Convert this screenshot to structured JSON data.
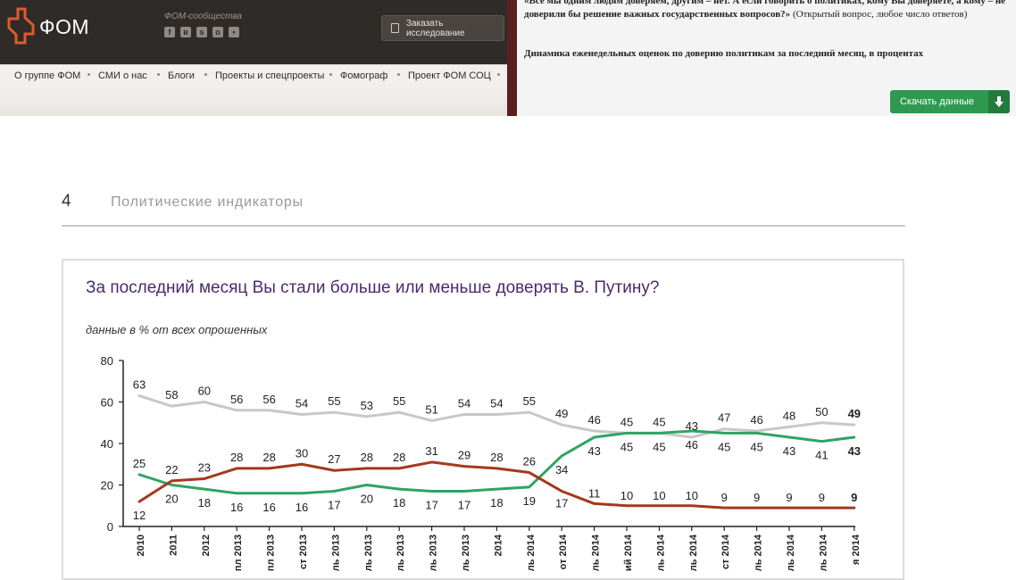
{
  "fom_site": {
    "logo_text": "ФОМ",
    "community_label": "ФОМ-сообщества",
    "social_icons": [
      "facebook-icon",
      "vk-icon",
      "skype-icon",
      "odnoklassniki-icon",
      "gift-icon"
    ],
    "order_button": "Заказать исследование",
    "nav": [
      "О группе ФОМ",
      "СМИ о нас",
      "Блоги",
      "Проекты и спецпроекты",
      "Фомограф",
      "Проект ФОМ СОЦ"
    ]
  },
  "right_panel": {
    "question_bold": "«Все мы одним людям доверяем, другим – нет. А если говорить о политиках, кому Вы доверяете, а кому – не доверили бы решение важных государственных вопросов?»",
    "question_note": "(Открытый вопрос, любое число ответов)",
    "dynamics_title": "Динамика еженедельных оценок по доверию политикам за последний месяц, в процентах",
    "download_button": "Скачать данные"
  },
  "page": {
    "number": "4",
    "section_title": "Политические индикаторы"
  },
  "colors": {
    "gray_series": "#c8c8c8",
    "green_series": "#2fa463",
    "red_series": "#a5381c",
    "title": "#4b2a6d",
    "download_green": "#2e9a4f"
  },
  "chart_data": {
    "type": "line",
    "title": "За последний месяц Вы стали больше или меньше доверять В. Путину?",
    "subtitle": "данные в % от всех опрошенных",
    "ylim": [
      0,
      80
    ],
    "y_ticks": [
      0,
      20,
      40,
      60,
      80
    ],
    "grid": false,
    "legend": "none",
    "x": [
      "2010",
      "2011",
      "2012",
      "... 2013",
      "... 2013",
      "... 2013",
      "... 2013",
      "... 2013",
      "... 2013",
      "... 2013",
      "... 2013",
      "... 2014",
      "... 2014",
      "... 2014",
      "... 2014",
      "... 2014",
      "... 2014",
      "... 2014",
      "... 2014",
      "... 2014",
      "... 2014",
      "... 2014",
      "... 2014"
    ],
    "x_tick_labels": [
      "2010",
      "2011",
      "2012",
      "пл 2013",
      "пл 2013",
      "ст 2013",
      "ль 2013",
      "ль 2013",
      "ль 2013",
      "ль 2013",
      "ль 2013",
      "2014",
      "ль 2014",
      "от 2014",
      "ль 2014",
      "ий 2014",
      "ль 2014",
      "ль 2014",
      "ст 2014",
      "ль 2014",
      "ль 2014",
      "ль 2014",
      "я 2014"
    ],
    "series": [
      {
        "color": "#c8c8c8",
        "values": [
          63,
          58,
          60,
          56,
          56,
          54,
          55,
          53,
          55,
          51,
          54,
          54,
          55,
          49,
          46,
          45,
          45,
          43,
          47,
          46,
          48,
          50,
          49
        ]
      },
      {
        "color": "#2fa463",
        "values": [
          25,
          20,
          18,
          16,
          16,
          16,
          17,
          20,
          18,
          17,
          17,
          18,
          19,
          34,
          43,
          45,
          45,
          46,
          45,
          45,
          43,
          41,
          43
        ]
      },
      {
        "color": "#a5381c",
        "values": [
          12,
          22,
          23,
          28,
          28,
          30,
          27,
          28,
          28,
          31,
          29,
          28,
          26,
          17,
          11,
          10,
          10,
          10,
          9,
          9,
          9,
          9,
          9
        ]
      }
    ]
  }
}
